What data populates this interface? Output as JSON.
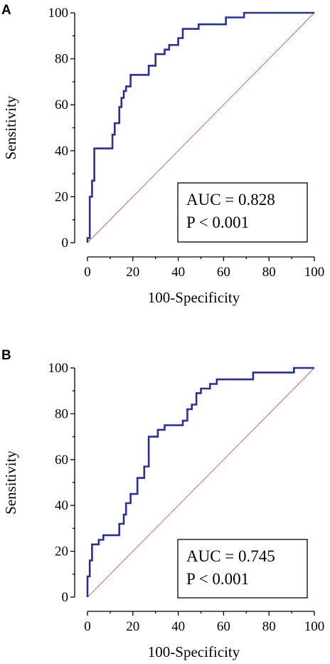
{
  "chart_data": [
    {
      "type": "line",
      "panel_label": "A",
      "xlabel": "100-Specificity",
      "ylabel": "Sensitivity",
      "xlim": [
        0,
        100
      ],
      "ylim": [
        0,
        100
      ],
      "xticks": [
        "0",
        "20",
        "40",
        "60",
        "80",
        "100"
      ],
      "yticks": [
        "0",
        "20",
        "40",
        "60",
        "80",
        "100"
      ],
      "annotation": [
        "AUC = 0.828",
        "P < 0.001"
      ],
      "colors": {
        "roc": "#2b2f8f",
        "reference": "#d9534f"
      },
      "series": [
        {
          "x": [
            0,
            0,
            1,
            1,
            2,
            2,
            3,
            3,
            11,
            11,
            12,
            12,
            14,
            14,
            15,
            15,
            16,
            16,
            17,
            17,
            19,
            19,
            27,
            27,
            30,
            30,
            34,
            34,
            36,
            36,
            37,
            37,
            40,
            40,
            42,
            42,
            49,
            49,
            61,
            61,
            69,
            69,
            100
          ],
          "y": [
            0,
            2,
            2,
            20,
            20,
            27,
            27,
            41,
            41,
            47,
            47,
            52,
            52,
            59,
            59,
            63,
            63,
            66,
            66,
            68,
            68,
            73,
            73,
            77,
            77,
            82,
            82,
            84,
            84,
            86,
            86,
            86,
            86,
            89,
            89,
            93,
            93,
            95,
            95,
            98,
            98,
            100,
            100
          ]
        },
        {
          "x": [
            0,
            100
          ],
          "y": [
            0,
            100
          ]
        }
      ]
    },
    {
      "type": "line",
      "panel_label": "B",
      "xlabel": "100-Specificity",
      "ylabel": "Sensitivity",
      "xlim": [
        0,
        100
      ],
      "ylim": [
        0,
        100
      ],
      "xticks": [
        "0",
        "20",
        "40",
        "60",
        "80",
        "100"
      ],
      "yticks": [
        "0",
        "20",
        "40",
        "60",
        "80",
        "100"
      ],
      "annotation": [
        "AUC = 0.745",
        "P < 0.001"
      ],
      "colors": {
        "roc": "#2b2f8f",
        "reference": "#d9534f"
      },
      "series": [
        {
          "x": [
            0,
            0,
            1,
            1,
            2,
            2,
            5,
            5,
            7,
            7,
            14,
            14,
            16,
            16,
            17,
            17,
            19,
            19,
            22,
            22,
            25,
            25,
            27,
            27,
            31,
            31,
            34,
            34,
            42,
            42,
            44,
            44,
            46,
            46,
            48,
            48,
            50,
            50,
            54,
            54,
            57,
            57,
            73,
            73,
            91,
            91,
            100
          ],
          "y": [
            0,
            9,
            9,
            16,
            16,
            23,
            23,
            25,
            25,
            27,
            27,
            32,
            32,
            36,
            36,
            41,
            41,
            45,
            45,
            52,
            52,
            57,
            57,
            70,
            70,
            73,
            73,
            75,
            75,
            77,
            77,
            82,
            82,
            84,
            84,
            89,
            89,
            91,
            91,
            93,
            93,
            95,
            95,
            98,
            98,
            100,
            100
          ]
        },
        {
          "x": [
            0,
            100
          ],
          "y": [
            0,
            100
          ]
        }
      ]
    }
  ]
}
